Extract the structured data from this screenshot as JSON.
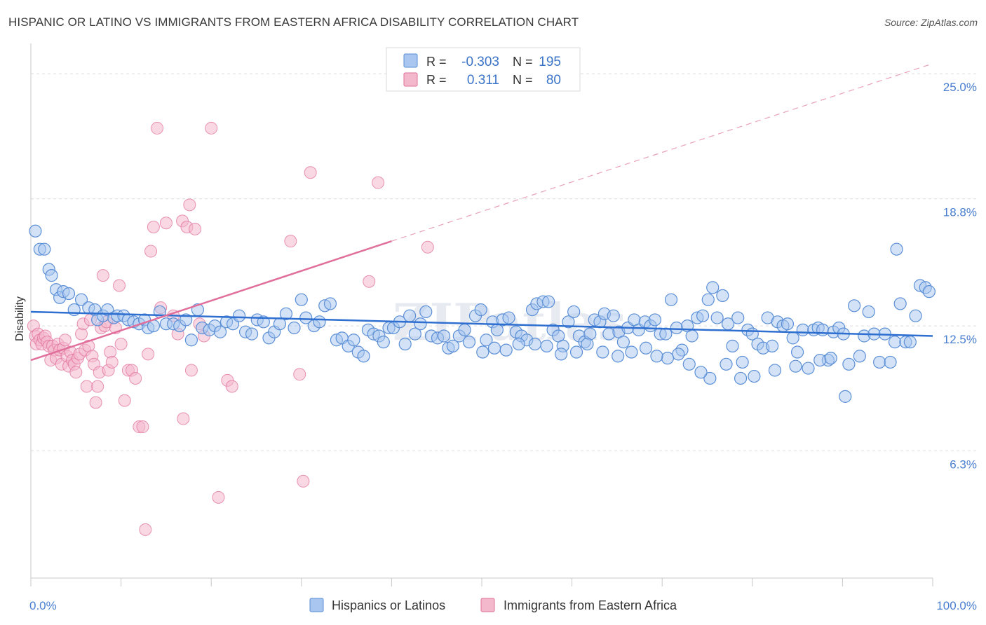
{
  "title": "HISPANIC OR LATINO VS IMMIGRANTS FROM EASTERN AFRICA DISABILITY CORRELATION CHART",
  "source": "Source: ZipAtlas.com",
  "watermark": "ZIPatlas",
  "colors": {
    "blue": "#5b8fd6",
    "blue_fill": "#a8c6ef",
    "pink": "#e0709b",
    "pink_fill": "#f4b8cc",
    "tick": "#4a7fd0"
  },
  "chart_data": {
    "type": "scatter",
    "title": "HISPANIC OR LATINO VS IMMIGRANTS FROM EASTERN AFRICA DISABILITY CORRELATION CHART",
    "xlabel": "",
    "ylabel": "Disability",
    "xlim": [
      0,
      100
    ],
    "ylim": [
      0,
      26.5
    ],
    "x_tick_labels": [
      "0.0%",
      "100.0%"
    ],
    "y_ticks": [
      6.3,
      12.5,
      18.8,
      25.0
    ],
    "y_tick_labels": [
      "6.3%",
      "12.5%",
      "18.8%",
      "25.0%"
    ],
    "grid": "horizontal dashed",
    "legend_position": "top-center",
    "legend": [
      {
        "r_label": "R =",
        "r_value": "-0.303",
        "n_label": "N =",
        "n_value": "195"
      },
      {
        "r_label": "R =",
        "r_value": "0.311",
        "n_label": "N =",
        "n_value": "80"
      }
    ],
    "series": [
      {
        "name": "Hispanics or Latinos",
        "trend": {
          "x": [
            0,
            100
          ],
          "y": [
            13.2,
            12.0
          ]
        },
        "points": [
          [
            0.5,
            17.2
          ],
          [
            1,
            16.3
          ],
          [
            1.5,
            16.3
          ],
          [
            2,
            15.3
          ],
          [
            2.3,
            15.0
          ],
          [
            2.8,
            14.3
          ],
          [
            3.2,
            13.9
          ],
          [
            3.6,
            14.2
          ],
          [
            4.2,
            14.1
          ],
          [
            4.8,
            13.3
          ],
          [
            5.6,
            13.8
          ],
          [
            6.4,
            13.4
          ],
          [
            7.1,
            13.3
          ],
          [
            7.4,
            12.8
          ],
          [
            8,
            13.0
          ],
          [
            8.5,
            13.3
          ],
          [
            9.2,
            12.9
          ],
          [
            9.6,
            13.0
          ],
          [
            10.3,
            13.0
          ],
          [
            10.8,
            12.8
          ],
          [
            11.4,
            12.7
          ],
          [
            12,
            12.6
          ],
          [
            12.6,
            12.8
          ],
          [
            13,
            12.4
          ],
          [
            13.6,
            12.5
          ],
          [
            14.3,
            13.2
          ],
          [
            15,
            12.6
          ],
          [
            15.8,
            12.6
          ],
          [
            16.5,
            12.5
          ],
          [
            17.2,
            12.8
          ],
          [
            17.8,
            11.8
          ],
          [
            18.5,
            13.3
          ],
          [
            19,
            12.4
          ],
          [
            19.8,
            12.3
          ],
          [
            20.4,
            12.5
          ],
          [
            21,
            12.2
          ],
          [
            21.7,
            12.7
          ],
          [
            22.4,
            12.6
          ],
          [
            23.1,
            13.0
          ],
          [
            23.8,
            12.2
          ],
          [
            24.5,
            12.1
          ],
          [
            25.1,
            12.8
          ],
          [
            25.8,
            12.7
          ],
          [
            26.4,
            11.9
          ],
          [
            27,
            12.2
          ],
          [
            27.6,
            12.6
          ],
          [
            28.3,
            13.1
          ],
          [
            29.2,
            12.4
          ],
          [
            30,
            13.8
          ],
          [
            30.5,
            12.9
          ],
          [
            31.4,
            12.5
          ],
          [
            32,
            12.7
          ],
          [
            32.6,
            13.5
          ],
          [
            33.2,
            13.6
          ],
          [
            33.9,
            11.8
          ],
          [
            34.5,
            11.9
          ],
          [
            35.2,
            11.5
          ],
          [
            35.8,
            11.8
          ],
          [
            36.3,
            11.2
          ],
          [
            36.9,
            11.0
          ],
          [
            37.4,
            12.3
          ],
          [
            38,
            12.1
          ],
          [
            38.6,
            12.0
          ],
          [
            39.1,
            11.7
          ],
          [
            39.7,
            12.4
          ],
          [
            40.2,
            12.4
          ],
          [
            40.9,
            12.7
          ],
          [
            41.5,
            11.6
          ],
          [
            42,
            13.0
          ],
          [
            42.6,
            12.1
          ],
          [
            43.2,
            12.6
          ],
          [
            43.8,
            13.2
          ],
          [
            44.4,
            12.0
          ],
          [
            45.1,
            11.9
          ],
          [
            45.8,
            12.0
          ],
          [
            46.3,
            11.4
          ],
          [
            46.8,
            11.5
          ],
          [
            47.5,
            12.0
          ],
          [
            48.1,
            12.3
          ],
          [
            48.6,
            11.7
          ],
          [
            49.3,
            13.0
          ],
          [
            49.9,
            13.3
          ],
          [
            50.5,
            11.8
          ],
          [
            51.2,
            12.7
          ],
          [
            51.7,
            12.3
          ],
          [
            52.3,
            12.8
          ],
          [
            53,
            12.9
          ],
          [
            53.8,
            12.2
          ],
          [
            54.4,
            12.0
          ],
          [
            55,
            11.8
          ],
          [
            55.6,
            13.3
          ],
          [
            56.1,
            13.6
          ],
          [
            56.8,
            13.7
          ],
          [
            57.4,
            13.7
          ],
          [
            57.9,
            12.3
          ],
          [
            58.5,
            12.0
          ],
          [
            59,
            11.5
          ],
          [
            59.6,
            12.7
          ],
          [
            60.2,
            13.2
          ],
          [
            60.8,
            12.0
          ],
          [
            61.4,
            11.7
          ],
          [
            62,
            12.1
          ],
          [
            62.5,
            12.8
          ],
          [
            63.1,
            12.7
          ],
          [
            63.6,
            13.1
          ],
          [
            64.1,
            12.1
          ],
          [
            64.6,
            13.0
          ],
          [
            65.2,
            12.2
          ],
          [
            65.7,
            11.7
          ],
          [
            66.2,
            12.4
          ],
          [
            66.9,
            12.8
          ],
          [
            67.4,
            12.3
          ],
          [
            68.1,
            12.7
          ],
          [
            68.7,
            12.5
          ],
          [
            69.2,
            12.8
          ],
          [
            69.8,
            12.1
          ],
          [
            70.4,
            12.1
          ],
          [
            71,
            13.8
          ],
          [
            71.6,
            12.4
          ],
          [
            72.2,
            11.3
          ],
          [
            72.8,
            12.5
          ],
          [
            73.3,
            12.0
          ],
          [
            73.9,
            12.9
          ],
          [
            74.5,
            13.0
          ],
          [
            75.1,
            13.8
          ],
          [
            75.6,
            14.4
          ],
          [
            76.1,
            12.9
          ],
          [
            76.7,
            14.0
          ],
          [
            77.3,
            12.6
          ],
          [
            77.8,
            11.5
          ],
          [
            78.4,
            12.9
          ],
          [
            78.9,
            10.7
          ],
          [
            79.5,
            12.3
          ],
          [
            80,
            12.1
          ],
          [
            80.6,
            11.6
          ],
          [
            81.2,
            11.4
          ],
          [
            81.7,
            12.9
          ],
          [
            82.2,
            11.5
          ],
          [
            82.8,
            12.7
          ],
          [
            83.4,
            12.5
          ],
          [
            83.9,
            12.6
          ],
          [
            84.5,
            11.9
          ],
          [
            85,
            11.2
          ],
          [
            85.6,
            12.3
          ],
          [
            86.2,
            10.4
          ],
          [
            86.8,
            12.3
          ],
          [
            87.3,
            12.4
          ],
          [
            87.8,
            12.3
          ],
          [
            88.4,
            10.8
          ],
          [
            89,
            12.2
          ],
          [
            89.6,
            12.4
          ],
          [
            90.1,
            12.1
          ],
          [
            90.7,
            10.6
          ],
          [
            91.3,
            13.5
          ],
          [
            91.9,
            11.0
          ],
          [
            92.4,
            12.0
          ],
          [
            92.9,
            13.2
          ],
          [
            93.5,
            12.1
          ],
          [
            94.1,
            10.7
          ],
          [
            94.7,
            12.1
          ],
          [
            95.3,
            10.7
          ],
          [
            95.8,
            11.7
          ],
          [
            96.4,
            13.6
          ],
          [
            97,
            11.7
          ],
          [
            97.5,
            11.7
          ],
          [
            98.1,
            13.0
          ],
          [
            98.6,
            14.5
          ],
          [
            99.2,
            14.4
          ],
          [
            99.6,
            14.2
          ],
          [
            96,
            16.3
          ],
          [
            87.5,
            10.8
          ],
          [
            88.7,
            10.9
          ],
          [
            90.3,
            9.0
          ],
          [
            84.8,
            10.5
          ],
          [
            82.5,
            10.3
          ],
          [
            80.2,
            10.0
          ],
          [
            78.7,
            9.9
          ],
          [
            77.1,
            10.6
          ],
          [
            75.3,
            9.9
          ],
          [
            74.3,
            10.2
          ],
          [
            73,
            10.6
          ],
          [
            71.8,
            11.1
          ],
          [
            70.6,
            10.9
          ],
          [
            69.4,
            11.0
          ],
          [
            68.2,
            11.4
          ],
          [
            66.6,
            11.2
          ],
          [
            65.1,
            11.0
          ],
          [
            63.4,
            11.2
          ],
          [
            61.7,
            11.6
          ],
          [
            60.5,
            11.2
          ],
          [
            58.8,
            11.1
          ],
          [
            57.2,
            11.5
          ],
          [
            55.9,
            11.6
          ],
          [
            54.1,
            11.6
          ],
          [
            52.7,
            11.3
          ],
          [
            51.4,
            11.4
          ],
          [
            50.1,
            11.2
          ]
        ]
      },
      {
        "name": "Immigrants from Eastern Africa",
        "trend": {
          "x": [
            0,
            40
          ],
          "y": [
            10.8,
            16.7
          ],
          "dash_to": [
            100,
            25.5
          ]
        },
        "points": [
          [
            0.3,
            12.5
          ],
          [
            0.5,
            12.0
          ],
          [
            0.6,
            11.6
          ],
          [
            0.8,
            12.1
          ],
          [
            1,
            11.8
          ],
          [
            1.2,
            11.6
          ],
          [
            1.4,
            11.9
          ],
          [
            1.6,
            12.0
          ],
          [
            1.8,
            11.7
          ],
          [
            2,
            11.5
          ],
          [
            2.2,
            10.8
          ],
          [
            2.4,
            11.5
          ],
          [
            2.6,
            11.3
          ],
          [
            2.8,
            10.9
          ],
          [
            3,
            11.6
          ],
          [
            3.2,
            11.3
          ],
          [
            3.4,
            10.6
          ],
          [
            3.6,
            11.4
          ],
          [
            3.8,
            11.8
          ],
          [
            4,
            11.0
          ],
          [
            4.2,
            10.5
          ],
          [
            4.4,
            11.2
          ],
          [
            4.6,
            10.8
          ],
          [
            4.8,
            10.6
          ],
          [
            5,
            10.2
          ],
          [
            5.2,
            10.9
          ],
          [
            5.4,
            11.1
          ],
          [
            5.6,
            12.1
          ],
          [
            5.8,
            12.6
          ],
          [
            6,
            11.3
          ],
          [
            6.2,
            9.5
          ],
          [
            6.4,
            11.5
          ],
          [
            6.6,
            12.8
          ],
          [
            6.8,
            11.0
          ],
          [
            7,
            10.6
          ],
          [
            7.2,
            8.7
          ],
          [
            7.4,
            9.5
          ],
          [
            7.6,
            10.2
          ],
          [
            7.8,
            12.4
          ],
          [
            8,
            15.0
          ],
          [
            8.2,
            12.5
          ],
          [
            8.4,
            12.7
          ],
          [
            8.6,
            10.3
          ],
          [
            8.8,
            11.2
          ],
          [
            9,
            10.7
          ],
          [
            9.4,
            12.4
          ],
          [
            9.8,
            14.5
          ],
          [
            10,
            11.6
          ],
          [
            10.4,
            8.8
          ],
          [
            10.8,
            10.3
          ],
          [
            11.2,
            10.3
          ],
          [
            11.6,
            9.9
          ],
          [
            12,
            7.5
          ],
          [
            12.4,
            7.5
          ],
          [
            12.7,
            2.4
          ],
          [
            13,
            11.1
          ],
          [
            13.3,
            16.2
          ],
          [
            13.6,
            17.4
          ],
          [
            14,
            22.3
          ],
          [
            14.4,
            13.4
          ],
          [
            15,
            17.6
          ],
          [
            15.8,
            13.0
          ],
          [
            16.3,
            12.1
          ],
          [
            16.8,
            17.7
          ],
          [
            16.9,
            7.9
          ],
          [
            17.3,
            17.4
          ],
          [
            17.6,
            18.5
          ],
          [
            17.8,
            10.3
          ],
          [
            18.2,
            17.3
          ],
          [
            18.7,
            12.6
          ],
          [
            19.2,
            12.0
          ],
          [
            20,
            22.3
          ],
          [
            20.8,
            4.0
          ],
          [
            21.8,
            9.8
          ],
          [
            22.3,
            9.5
          ],
          [
            28.8,
            16.7
          ],
          [
            29.8,
            10.1
          ],
          [
            30.2,
            4.8
          ],
          [
            31,
            20.1
          ],
          [
            37.5,
            14.7
          ],
          [
            38.5,
            19.6
          ],
          [
            44,
            16.4
          ]
        ]
      }
    ]
  },
  "bottom_legend": [
    {
      "label": "Hispanics or Latinos"
    },
    {
      "label": "Immigrants from Eastern Africa"
    }
  ]
}
